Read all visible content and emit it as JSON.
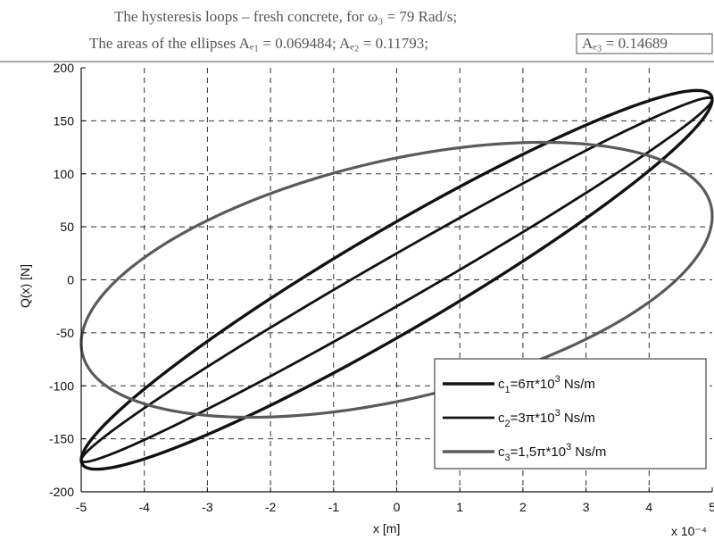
{
  "title": {
    "line1": "The hysteresis loops – fresh concrete, for ω₃ = 79 Rad/s;",
    "line2_prefix": "The areas  of the ellipses Aₑ₁ = 0.069484; Aₑ₂ = 0.11793;",
    "line2_boxed": "Aₑ₃ = 0.14689"
  },
  "chart_data": {
    "type": "line",
    "xlabel": "x [m]",
    "ylabel": "Q(x) [N]",
    "x_multiplier": "x 10⁻⁴",
    "xlim": [
      -5,
      5
    ],
    "ylim": [
      -200,
      200
    ],
    "x_ticks": [
      -5,
      -4,
      -3,
      -2,
      -1,
      0,
      1,
      2,
      3,
      4,
      5
    ],
    "y_ticks": [
      -200,
      -150,
      -100,
      -50,
      0,
      50,
      100,
      150,
      200
    ],
    "grid": true,
    "legend_position": "bottom-right",
    "series": [
      {
        "name": "c₁=6π*10³ Ns/m",
        "color": "#111111",
        "stiffness_slope": 34,
        "damping_amplitude": 55,
        "x_amplitude": 5
      },
      {
        "name": "c₂=3π*10³ Ns/m",
        "color": "#111111",
        "stiffness_slope": 34,
        "damping_amplitude": 25,
        "x_amplitude": 5
      },
      {
        "name": "c₃=1,5π*10³ Ns/m",
        "color": "#5a5a5a",
        "stiffness_slope": 12,
        "damping_amplitude": 115,
        "x_amplitude": 5
      }
    ],
    "legend": [
      {
        "label_main": "c",
        "label_sub": "1",
        "label_rest": "=6π*10",
        "label_sup": "3",
        "label_unit": " Ns/m",
        "color": "#111111"
      },
      {
        "label_main": "c",
        "label_sub": "2",
        "label_rest": "=3π*10",
        "label_sup": "3",
        "label_unit": " Ns/m",
        "color": "#111111"
      },
      {
        "label_main": "c",
        "label_sub": "3",
        "label_rest": "=1,5π*10",
        "label_sup": "3",
        "label_unit": " Ns/m",
        "color": "#5a5a5a"
      }
    ]
  }
}
